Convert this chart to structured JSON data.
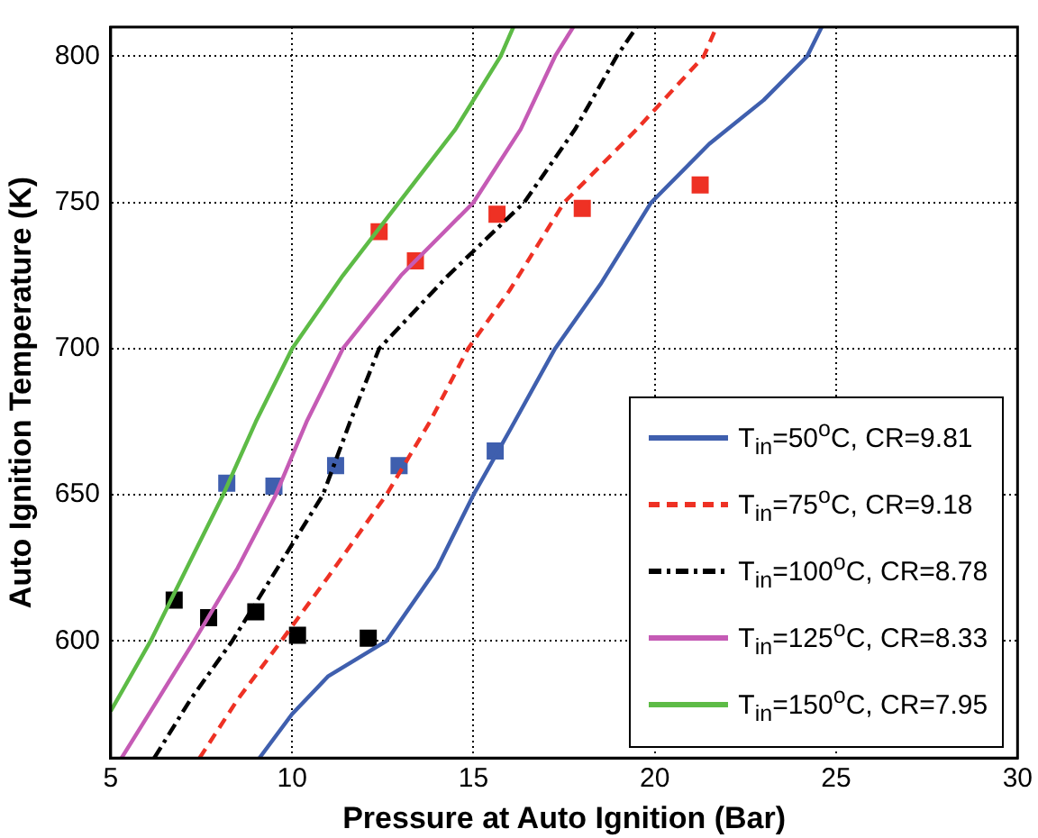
{
  "chart_data": {
    "type": "line",
    "xlabel": "Pressure at Auto Ignition (Bar)",
    "ylabel": "Auto Ignition Temperature (K)",
    "xlim": [
      5,
      30
    ],
    "xticks": [
      5,
      10,
      15,
      20,
      25,
      30
    ],
    "ylim": [
      560,
      810
    ],
    "yticks": [
      600,
      650,
      700,
      750,
      800
    ],
    "grid": true,
    "legend": "bottom right",
    "series": [
      {
        "name": "T$_{in}$=50$^{o}$C, CR=9.81",
        "line_style": "solid",
        "color": "#3f5fae",
        "x": [
          9.1,
          10,
          11,
          12.6,
          14,
          15,
          16,
          17.25,
          18.5,
          19.9,
          21.5,
          23,
          24.2,
          24.6
        ],
        "values": [
          560,
          575,
          588,
          600,
          625,
          650,
          672,
          700,
          722,
          750,
          770,
          785,
          800,
          810
        ]
      },
      {
        "name": "T$_{in}$=75$^{o}$C, CR=9.18",
        "line_style": "dashed",
        "color": "#ee3124",
        "x": [
          7.45,
          8.5,
          9.7,
          11,
          12.6,
          13.8,
          14.85,
          16,
          17.5,
          19.5,
          21.35,
          21.7
        ],
        "values": [
          560,
          580,
          600,
          622,
          650,
          675,
          700,
          720,
          750,
          775,
          800,
          810
        ]
      },
      {
        "name": "T$_{in}$=100$^{o}$C, CR=8.78",
        "line_style": "dashdot",
        "color": "#000000",
        "x": [
          6.2,
          7.2,
          8.35,
          9.6,
          10.85,
          11.6,
          12.4,
          14.3,
          16.4,
          17.8,
          18.95,
          19.5
        ],
        "values": [
          560,
          580,
          600,
          625,
          650,
          675,
          700,
          725,
          750,
          775,
          800,
          810
        ]
      },
      {
        "name": "T$_{in}$=125$^{o}$C, CR=8.33",
        "line_style": "solid",
        "color": "#c55bb5",
        "x": [
          5.3,
          6.3,
          7.3,
          8.5,
          9.55,
          10.4,
          11.4,
          13,
          15,
          16.3,
          17.25,
          17.75
        ],
        "values": [
          560,
          580,
          600,
          625,
          650,
          675,
          700,
          725,
          750,
          775,
          800,
          810
        ]
      },
      {
        "name": "T$_{in}$=150$^{o}$C, CR=7.95",
        "line_style": "solid",
        "color": "#5dbb46",
        "x": [
          5,
          6.1,
          7.1,
          8.1,
          9,
          10,
          11.4,
          12.95,
          14.5,
          15.75,
          16.1
        ],
        "values": [
          576,
          600,
          625,
          650,
          675,
          700,
          725,
          750,
          775,
          800,
          810
        ]
      },
      {
        "type": "scatter",
        "marker": "square",
        "color": "#ee3124",
        "x": [
          12.4,
          13.4,
          15.65,
          18,
          21.25
        ],
        "values": [
          740,
          730,
          746,
          748,
          756
        ]
      },
      {
        "type": "scatter",
        "marker": "square",
        "color": "#3f5fae",
        "x": [
          8.2,
          9.5,
          11.2,
          12.95,
          15.6
        ],
        "values": [
          654,
          653,
          660,
          660,
          665
        ]
      },
      {
        "type": "scatter",
        "marker": "square",
        "color": "#000000",
        "x": [
          6.75,
          7.7,
          9,
          10.15,
          12.1
        ],
        "values": [
          614,
          608,
          610,
          602,
          601
        ]
      }
    ]
  }
}
